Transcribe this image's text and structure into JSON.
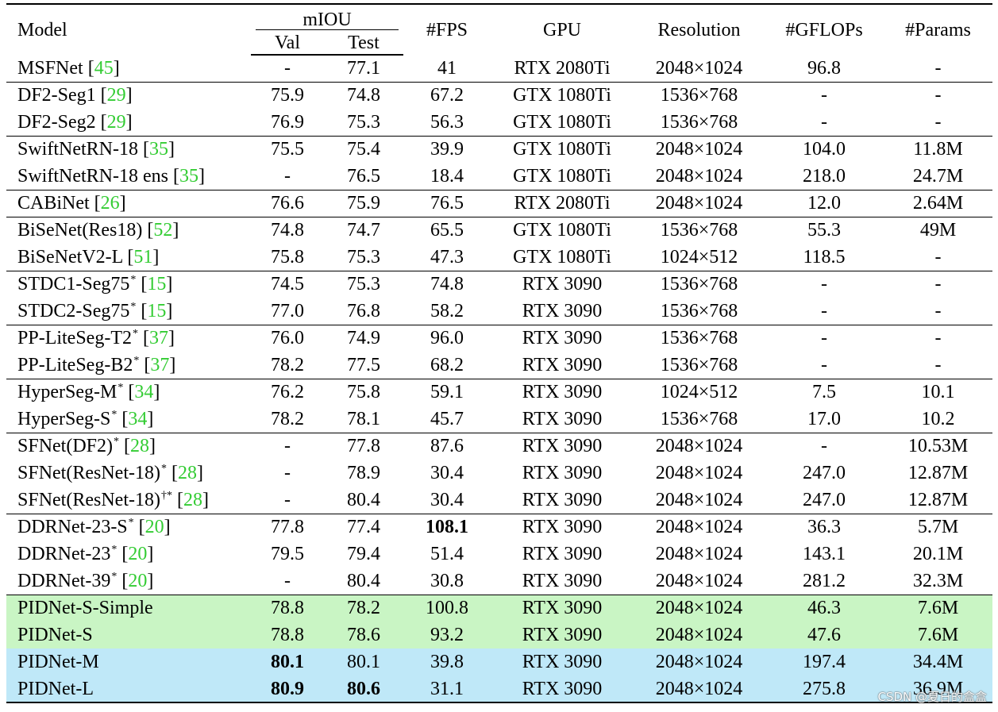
{
  "headers": {
    "model": "Model",
    "miou": "mIOU",
    "val": "Val",
    "test": "Test",
    "fps": "#FPS",
    "gpu": "GPU",
    "resolution": "Resolution",
    "gflops": "#GFLOPs",
    "params": "#Params"
  },
  "rows": [
    {
      "name": "MSFNet",
      "sup": "",
      "ref": "45",
      "val": "-",
      "test": "77.1",
      "fps": "41",
      "gpu": "RTX 2080Ti",
      "res": "2048×1024",
      "gflops": "96.8",
      "params": "-"
    },
    {
      "name": "DF2-Seg1",
      "sup": "",
      "ref": "29",
      "val": "75.9",
      "test": "74.8",
      "fps": "67.2",
      "gpu": "GTX 1080Ti",
      "res": "1536×768",
      "gflops": "-",
      "params": "-"
    },
    {
      "name": "DF2-Seg2",
      "sup": "",
      "ref": "29",
      "val": "76.9",
      "test": "75.3",
      "fps": "56.3",
      "gpu": "GTX 1080Ti",
      "res": "1536×768",
      "gflops": "-",
      "params": "-"
    },
    {
      "name": "SwiftNetRN-18",
      "sup": "",
      "ref": "35",
      "val": "75.5",
      "test": "75.4",
      "fps": "39.9",
      "gpu": "GTX 1080Ti",
      "res": "2048×1024",
      "gflops": "104.0",
      "params": "11.8M"
    },
    {
      "name": "SwiftNetRN-18 ens",
      "sup": "",
      "ref": "35",
      "val": "-",
      "test": "76.5",
      "fps": "18.4",
      "gpu": "GTX 1080Ti",
      "res": "2048×1024",
      "gflops": "218.0",
      "params": "24.7M"
    },
    {
      "name": "CABiNet",
      "sup": "",
      "ref": "26",
      "val": "76.6",
      "test": "75.9",
      "fps": "76.5",
      "gpu": "RTX 2080Ti",
      "res": "2048×1024",
      "gflops": "12.0",
      "params": "2.64M"
    },
    {
      "name": "BiSeNet(Res18)",
      "sup": "",
      "ref": "52",
      "val": "74.8",
      "test": "74.7",
      "fps": "65.5",
      "gpu": "GTX 1080Ti",
      "res": "1536×768",
      "gflops": "55.3",
      "params": "49M"
    },
    {
      "name": "BiSeNetV2-L",
      "sup": "",
      "ref": "51",
      "val": "75.8",
      "test": "75.3",
      "fps": "47.3",
      "gpu": "GTX 1080Ti",
      "res": "1024×512",
      "gflops": "118.5",
      "params": "-"
    },
    {
      "name": "STDC1-Seg75",
      "sup": "*",
      "ref": "15",
      "val": "74.5",
      "test": "75.3",
      "fps": "74.8",
      "gpu": "RTX 3090",
      "res": "1536×768",
      "gflops": "-",
      "params": "-"
    },
    {
      "name": "STDC2-Seg75",
      "sup": "*",
      "ref": "15",
      "val": "77.0",
      "test": "76.8",
      "fps": "58.2",
      "gpu": "RTX 3090",
      "res": "1536×768",
      "gflops": "-",
      "params": "-"
    },
    {
      "name": "PP-LiteSeg-T2",
      "sup": "*",
      "ref": "37",
      "val": "76.0",
      "test": "74.9",
      "fps": "96.0",
      "gpu": "RTX 3090",
      "res": "1536×768",
      "gflops": "-",
      "params": "-"
    },
    {
      "name": "PP-LiteSeg-B2",
      "sup": "*",
      "ref": "37",
      "val": "78.2",
      "test": "77.5",
      "fps": "68.2",
      "gpu": "RTX 3090",
      "res": "1536×768",
      "gflops": "-",
      "params": "-"
    },
    {
      "name": "HyperSeg-M",
      "sup": "*",
      "ref": "34",
      "val": "76.2",
      "test": "75.8",
      "fps": "59.1",
      "gpu": "RTX 3090",
      "res": "1024×512",
      "gflops": "7.5",
      "params": "10.1"
    },
    {
      "name": "HyperSeg-S",
      "sup": "*",
      "ref": "34",
      "val": "78.2",
      "test": "78.1",
      "fps": "45.7",
      "gpu": "RTX 3090",
      "res": "1536×768",
      "gflops": "17.0",
      "params": "10.2"
    },
    {
      "name": "SFNet(DF2)",
      "sup": "*",
      "ref": "28",
      "val": "-",
      "test": "77.8",
      "fps": "87.6",
      "gpu": "RTX 3090",
      "res": "2048×1024",
      "gflops": "-",
      "params": "10.53M"
    },
    {
      "name": "SFNet(ResNet-18)",
      "sup": "*",
      "ref": "28",
      "val": "-",
      "test": "78.9",
      "fps": "30.4",
      "gpu": "RTX 3090",
      "res": "2048×1024",
      "gflops": "247.0",
      "params": "12.87M"
    },
    {
      "name": "SFNet(ResNet-18)",
      "sup": "†*",
      "ref": "28",
      "val": "-",
      "test": "80.4",
      "fps": "30.4",
      "gpu": "RTX 3090",
      "res": "2048×1024",
      "gflops": "247.0",
      "params": "12.87M"
    },
    {
      "name": "DDRNet-23-S",
      "sup": "*",
      "ref": "20",
      "val": "77.8",
      "test": "77.4",
      "fps": "108.1",
      "gpu": "RTX 3090",
      "res": "2048×1024",
      "gflops": "36.3",
      "params": "5.7M"
    },
    {
      "name": "DDRNet-23",
      "sup": "*",
      "ref": "20",
      "val": "79.5",
      "test": "79.4",
      "fps": "51.4",
      "gpu": "RTX 3090",
      "res": "2048×1024",
      "gflops": "143.1",
      "params": "20.1M"
    },
    {
      "name": "DDRNet-39",
      "sup": "*",
      "ref": "20",
      "val": "-",
      "test": "80.4",
      "fps": "30.8",
      "gpu": "RTX 3090",
      "res": "2048×1024",
      "gflops": "281.2",
      "params": "32.3M"
    },
    {
      "name": "PIDNet-S-Simple",
      "sup": "",
      "ref": "",
      "val": "78.8",
      "test": "78.2",
      "fps": "100.8",
      "gpu": "RTX 3090",
      "res": "2048×1024",
      "gflops": "46.3",
      "params": "7.6M"
    },
    {
      "name": "PIDNet-S",
      "sup": "",
      "ref": "",
      "val": "78.8",
      "test": "78.6",
      "fps": "93.2",
      "gpu": "RTX 3090",
      "res": "2048×1024",
      "gflops": "47.6",
      "params": "7.6M"
    },
    {
      "name": "PIDNet-M",
      "sup": "",
      "ref": "",
      "val": "80.1",
      "test": "80.1",
      "fps": "39.8",
      "gpu": "RTX 3090",
      "res": "2048×1024",
      "gflops": "197.4",
      "params": "34.4M"
    },
    {
      "name": "PIDNet-L",
      "sup": "",
      "ref": "",
      "val": "80.9",
      "test": "80.6",
      "fps": "31.1",
      "gpu": "RTX 3090",
      "res": "2048×1024",
      "gflops": "275.8",
      "params": "36.9M"
    }
  ],
  "styling": {
    "reference_color": "#33cc33",
    "highlight_green": "#c9f5c4",
    "highlight_blue": "#bfe8f8"
  },
  "watermark": "CSDN @夏日的盒盒"
}
